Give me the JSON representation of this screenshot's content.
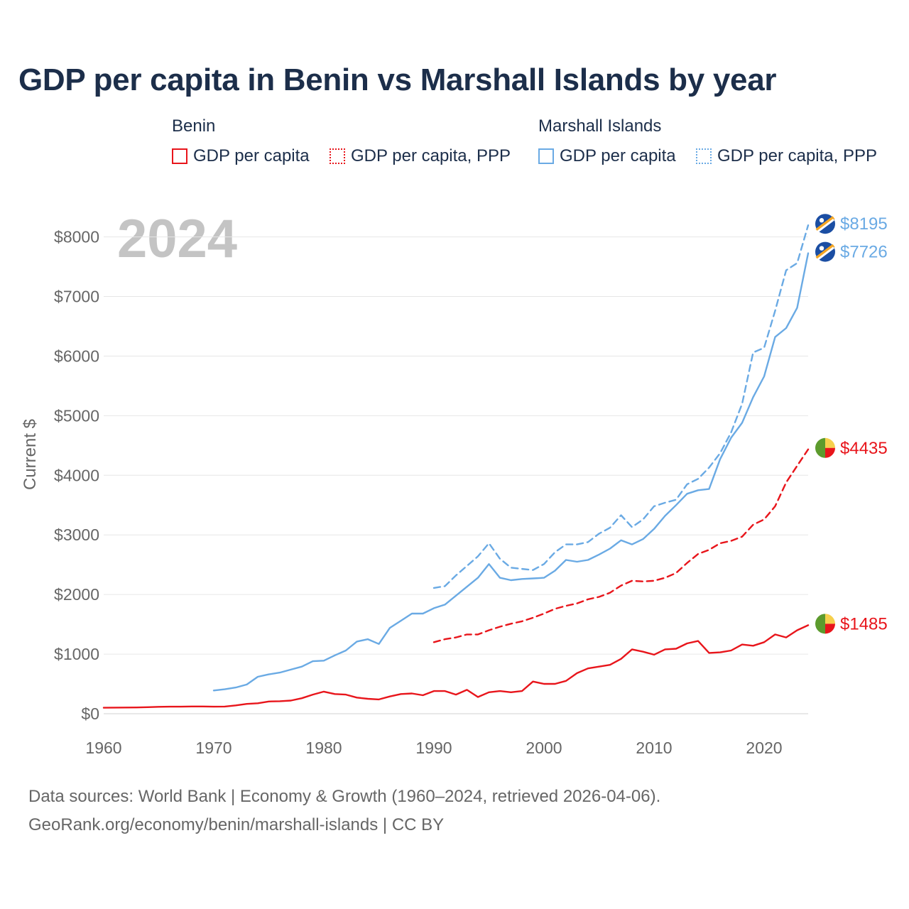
{
  "colors": {
    "benin": "#e8151b",
    "marshall": "#6aaae4",
    "axis_text": "#666666",
    "title": "#1c2e4a",
    "grid": "#e6e6e6",
    "year_watermark": "#c4c4c4"
  },
  "legend": {
    "groups": [
      {
        "country": "Benin",
        "items": [
          {
            "label": "GDP per capita",
            "style": "solid"
          },
          {
            "label": "GDP per capita, PPP",
            "style": "dotted"
          }
        ]
      },
      {
        "country": "Marshall Islands",
        "items": [
          {
            "label": "GDP per capita",
            "style": "solid"
          },
          {
            "label": "GDP per capita, PPP",
            "style": "dotted"
          }
        ]
      }
    ]
  },
  "footer": {
    "line1": "Data sources: World Bank | Economy & Growth (1960–2024, retrieved 2026-04-06).",
    "line2": "GeoRank.org/economy/benin/marshall-islands | CC BY"
  },
  "chart_data": {
    "type": "line",
    "title": "GDP per capita in Benin vs Marshall Islands by year",
    "year_label": "2024",
    "xlabel": "",
    "ylabel": "Current $",
    "xlim": [
      1960,
      2024
    ],
    "ylim": [
      0,
      8400
    ],
    "x_ticks": [
      1960,
      1970,
      1980,
      1990,
      2000,
      2010,
      2020
    ],
    "y_ticks": [
      {
        "value": 0,
        "label": "$0"
      },
      {
        "value": 1000,
        "label": "$1000"
      },
      {
        "value": 2000,
        "label": "$2000"
      },
      {
        "value": 3000,
        "label": "$3000"
      },
      {
        "value": 4000,
        "label": "$4000"
      },
      {
        "value": 5000,
        "label": "$5000"
      },
      {
        "value": 6000,
        "label": "$6000"
      },
      {
        "value": 7000,
        "label": "$7000"
      },
      {
        "value": 8000,
        "label": "$8000"
      }
    ],
    "series": [
      {
        "name": "Marshall Islands GDP per capita, PPP",
        "country": "Marshall Islands",
        "color_key": "marshall",
        "dash": "dashed",
        "end_label": "$8195",
        "flag": "marshall",
        "x": [
          1990,
          1991,
          1992,
          1993,
          1994,
          1995,
          1996,
          1997,
          1998,
          1999,
          2000,
          2001,
          2002,
          2003,
          2004,
          2005,
          2006,
          2007,
          2008,
          2009,
          2010,
          2011,
          2012,
          2013,
          2014,
          2015,
          2016,
          2017,
          2018,
          2019,
          2020,
          2021,
          2022,
          2023,
          2024
        ],
        "values": [
          2110,
          2140,
          2320,
          2480,
          2640,
          2860,
          2600,
          2450,
          2430,
          2410,
          2510,
          2710,
          2840,
          2840,
          2880,
          3020,
          3120,
          3330,
          3130,
          3260,
          3480,
          3540,
          3590,
          3850,
          3940,
          4130,
          4370,
          4720,
          5200,
          6060,
          6140,
          6760,
          7440,
          7560,
          8195
        ]
      },
      {
        "name": "Marshall Islands GDP per capita",
        "country": "Marshall Islands",
        "color_key": "marshall",
        "dash": "solid",
        "end_label": "$7726",
        "flag": "marshall",
        "x": [
          1970,
          1971,
          1972,
          1973,
          1974,
          1975,
          1976,
          1977,
          1978,
          1979,
          1980,
          1981,
          1982,
          1983,
          1984,
          1985,
          1986,
          1987,
          1988,
          1989,
          1990,
          1991,
          1992,
          1993,
          1994,
          1995,
          1996,
          1997,
          1998,
          1999,
          2000,
          2001,
          2002,
          2003,
          2004,
          2005,
          2006,
          2007,
          2008,
          2009,
          2010,
          2011,
          2012,
          2013,
          2014,
          2015,
          2016,
          2017,
          2018,
          2019,
          2020,
          2021,
          2022,
          2023,
          2024
        ],
        "values": [
          390,
          410,
          440,
          490,
          620,
          660,
          690,
          740,
          790,
          880,
          890,
          980,
          1060,
          1210,
          1250,
          1170,
          1440,
          1560,
          1680,
          1680,
          1770,
          1830,
          1980,
          2130,
          2280,
          2510,
          2280,
          2240,
          2260,
          2270,
          2280,
          2400,
          2580,
          2550,
          2580,
          2670,
          2770,
          2910,
          2840,
          2930,
          3100,
          3320,
          3500,
          3690,
          3750,
          3770,
          4270,
          4630,
          4880,
          5310,
          5660,
          6320,
          6470,
          6810,
          7726
        ]
      },
      {
        "name": "Benin GDP per capita, PPP",
        "country": "Benin",
        "color_key": "benin",
        "dash": "dashed",
        "end_label": "$4435",
        "flag": "benin",
        "x": [
          1990,
          1991,
          1992,
          1993,
          1994,
          1995,
          1996,
          1997,
          1998,
          1999,
          2000,
          2001,
          2002,
          2003,
          2004,
          2005,
          2006,
          2007,
          2008,
          2009,
          2010,
          2011,
          2012,
          2013,
          2014,
          2015,
          2016,
          2017,
          2018,
          2019,
          2020,
          2021,
          2022,
          2023,
          2024
        ],
        "values": [
          1200,
          1250,
          1280,
          1330,
          1330,
          1400,
          1460,
          1510,
          1550,
          1610,
          1680,
          1760,
          1810,
          1850,
          1920,
          1960,
          2030,
          2150,
          2230,
          2220,
          2230,
          2280,
          2360,
          2530,
          2680,
          2750,
          2860,
          2900,
          2970,
          3170,
          3260,
          3480,
          3880,
          4160,
          4435
        ]
      },
      {
        "name": "Benin GDP per capita",
        "country": "Benin",
        "color_key": "benin",
        "dash": "solid",
        "end_label": "$1485",
        "flag": "benin",
        "x": [
          1960,
          1961,
          1962,
          1963,
          1964,
          1965,
          1966,
          1967,
          1968,
          1969,
          1970,
          1971,
          1972,
          1973,
          1974,
          1975,
          1976,
          1977,
          1978,
          1979,
          1980,
          1981,
          1982,
          1983,
          1984,
          1985,
          1986,
          1987,
          1988,
          1989,
          1990,
          1991,
          1992,
          1993,
          1994,
          1995,
          1996,
          1997,
          1998,
          1999,
          2000,
          2001,
          2002,
          2003,
          2004,
          2005,
          2006,
          2007,
          2008,
          2009,
          2010,
          2011,
          2012,
          2013,
          2014,
          2015,
          2016,
          2017,
          2018,
          2019,
          2020,
          2021,
          2022,
          2023,
          2024
        ],
        "values": [
          100,
          102,
          104,
          105,
          110,
          115,
          118,
          118,
          122,
          122,
          118,
          120,
          140,
          165,
          175,
          205,
          210,
          220,
          260,
          320,
          370,
          330,
          320,
          270,
          250,
          240,
          290,
          330,
          340,
          310,
          380,
          380,
          320,
          400,
          280,
          360,
          380,
          360,
          380,
          540,
          500,
          500,
          550,
          680,
          760,
          790,
          820,
          920,
          1080,
          1040,
          990,
          1080,
          1090,
          1180,
          1220,
          1020,
          1030,
          1060,
          1160,
          1140,
          1200,
          1330,
          1280,
          1400,
          1485
        ]
      }
    ]
  }
}
